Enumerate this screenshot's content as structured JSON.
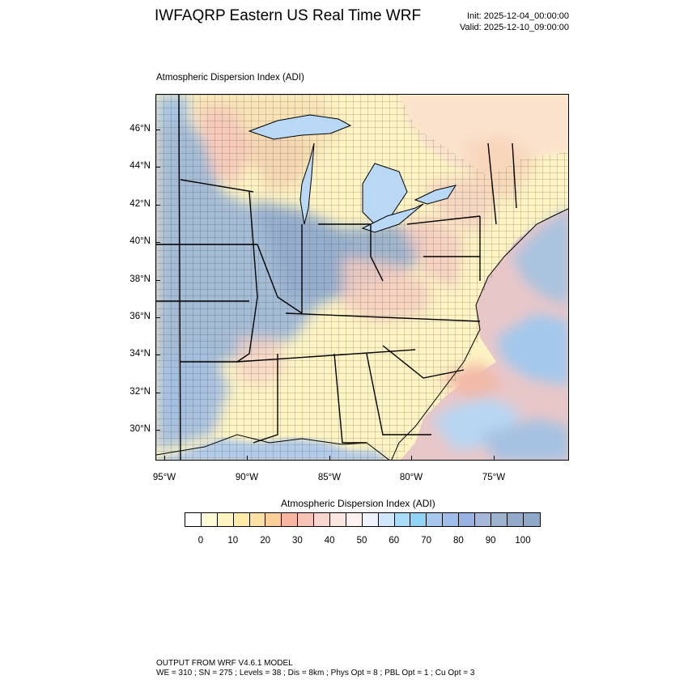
{
  "header": {
    "title": "IWFAQRP Eastern US Real Time WRF",
    "init": "Init: 2025-12-04_00:00:00",
    "valid": "Valid: 2025-12-10_09:00:00"
  },
  "map": {
    "subtitle": "Atmospheric Dispersion Index   (ADI)",
    "lat_labels": [
      "46°N",
      "44°N",
      "42°N",
      "40°N",
      "38°N",
      "36°N",
      "34°N",
      "32°N",
      "30°N"
    ],
    "lon_labels": [
      "95°W",
      "90°W",
      "85°W",
      "80°W",
      "75°W"
    ]
  },
  "colorbar": {
    "title": "Atmospheric Dispersion Index  (ADI)",
    "labels": [
      "0",
      "10",
      "20",
      "30",
      "40",
      "50",
      "60",
      "70",
      "80",
      "90",
      "100"
    ],
    "colors": [
      "#ffffff",
      "#fffbd7",
      "#fff4c0",
      "#ffeaa8",
      "#fde0a3",
      "#fbd098",
      "#f8b6a0",
      "#f6c3b6",
      "#f9d7d0",
      "#fbe6e2",
      "#fdf2f0",
      "#eef3fc",
      "#cfe6fb",
      "#a8dcf9",
      "#8fd3f5",
      "#a7c8ee",
      "#9fbdeb",
      "#98b2e6",
      "#a5b8da",
      "#9cb3d1",
      "#93abcb",
      "#8ea9c8"
    ]
  },
  "footer": {
    "line1": "OUTPUT FROM WRF V4.6.1 MODEL",
    "line2": "WE = 310 ; SN = 275 ; Levels = 38 ; Dis = 8km ; Phys Opt = 8 ; PBL Opt = 1 ; Cu Opt = 3"
  }
}
